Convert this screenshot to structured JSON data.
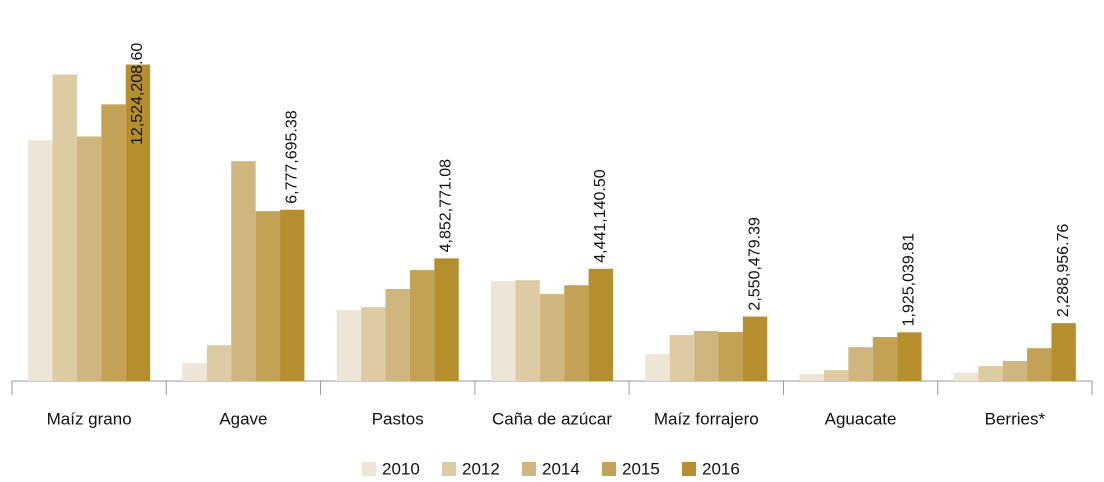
{
  "chart_data": {
    "type": "bar",
    "categories": [
      "Maíz grano",
      "Agave",
      "Pastos",
      "Caña de azúcar",
      "Maíz forrajero",
      "Aguacate",
      "Berries*"
    ],
    "series": [
      {
        "name": "2010",
        "color": "#ede6d6",
        "values": [
          9530000,
          710000,
          2810000,
          3950000,
          1070000,
          280000,
          320000
        ]
      },
      {
        "name": "2012",
        "color": "#ddcba3",
        "values": [
          12130000,
          1420000,
          2920000,
          3990000,
          1820000,
          430000,
          590000
        ]
      },
      {
        "name": "2014",
        "color": "#cfb67e",
        "values": [
          9680000,
          8700000,
          3640000,
          3440000,
          1980000,
          1340000,
          790000
        ]
      },
      {
        "name": "2015",
        "color": "#c4a255",
        "values": [
          10950000,
          6720000,
          4390000,
          3790000,
          1940000,
          1740000,
          1300000
        ]
      },
      {
        "name": "2016",
        "color": "#b58e2e",
        "values": [
          12524208.6,
          6777695.38,
          4852771.08,
          4441140.5,
          2550479.39,
          1925039.81,
          2288956.76
        ],
        "value_labels": [
          "12,524,208.60",
          "6,777,695.38",
          "4,852,771.08",
          "4,441,140.50",
          "2,550,479.39",
          "1,925,039.81",
          "2,288,956.76"
        ]
      }
    ],
    "ylim": [
      0,
      15000000
    ],
    "legend": "bottom"
  }
}
